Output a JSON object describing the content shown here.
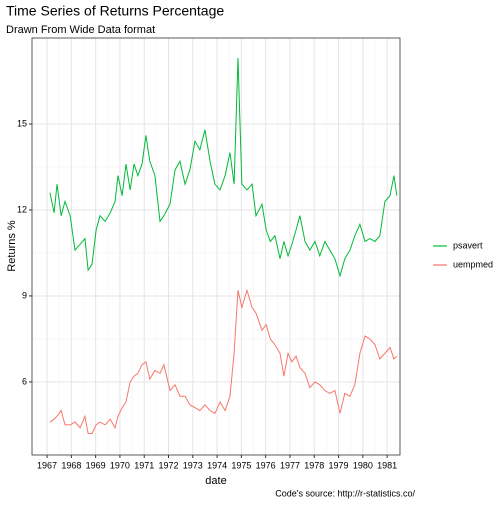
{
  "chart_data": {
    "type": "line",
    "title": "Time Series of Returns Percentage",
    "subtitle": "Drawn From Wide Data format",
    "caption": "Code's source: http://r-statistics.co/",
    "x_label": "date",
    "y_label": "Returns %",
    "x": [
      1967.12,
      1967.29,
      1967.41,
      1967.58,
      1967.74,
      1967.95,
      1968.15,
      1968.36,
      1968.56,
      1968.69,
      1968.85,
      1969.02,
      1969.18,
      1969.39,
      1969.6,
      1969.8,
      1969.92,
      1970.09,
      1970.25,
      1970.42,
      1970.58,
      1970.74,
      1970.91,
      1971.07,
      1971.23,
      1971.44,
      1971.65,
      1971.81,
      1972.06,
      1972.27,
      1972.47,
      1972.68,
      1972.88,
      1973.09,
      1973.29,
      1973.5,
      1973.71,
      1973.91,
      1974.12,
      1974.33,
      1974.53,
      1974.7,
      1974.86,
      1975.02,
      1975.23,
      1975.44,
      1975.6,
      1975.85,
      1976.02,
      1976.19,
      1976.38,
      1976.59,
      1976.75,
      1976.92,
      1977.08,
      1977.25,
      1977.41,
      1977.62,
      1977.82,
      1978.03,
      1978.23,
      1978.44,
      1978.64,
      1978.85,
      1979.06,
      1979.26,
      1979.47,
      1979.67,
      1979.88,
      1980.09,
      1980.29,
      1980.5,
      1980.7,
      1980.91,
      1981.12,
      1981.28,
      1981.4
    ],
    "series": [
      {
        "name": "psavert",
        "color": "#00BA38",
        "values": [
          12.6,
          11.9,
          12.9,
          11.8,
          12.3,
          11.8,
          10.6,
          10.8,
          11.0,
          9.9,
          10.1,
          11.3,
          11.8,
          11.6,
          11.9,
          12.3,
          13.2,
          12.5,
          13.6,
          12.7,
          13.6,
          13.2,
          13.6,
          14.6,
          13.7,
          13.2,
          11.6,
          11.8,
          12.2,
          13.4,
          13.7,
          12.9,
          13.4,
          14.4,
          14.1,
          14.8,
          13.7,
          12.9,
          12.7,
          13.2,
          14.0,
          12.9,
          17.3,
          12.9,
          12.7,
          12.9,
          11.8,
          12.2,
          11.3,
          10.9,
          11.1,
          10.3,
          10.9,
          10.4,
          10.8,
          11.3,
          11.8,
          10.9,
          10.6,
          10.9,
          10.4,
          10.9,
          10.6,
          10.3,
          9.7,
          10.3,
          10.6,
          11.1,
          11.5,
          10.9,
          11.0,
          10.9,
          11.1,
          12.3,
          12.5,
          13.2,
          12.5
        ]
      },
      {
        "name": "uempmed",
        "color": "#F8766D",
        "values": [
          4.6,
          4.7,
          4.8,
          5.0,
          4.5,
          4.5,
          4.6,
          4.4,
          4.8,
          4.2,
          4.2,
          4.5,
          4.6,
          4.5,
          4.7,
          4.4,
          4.8,
          5.1,
          5.3,
          6.0,
          6.2,
          6.3,
          6.6,
          6.7,
          6.1,
          6.4,
          6.3,
          6.6,
          5.7,
          5.9,
          5.5,
          5.5,
          5.2,
          5.1,
          5.0,
          5.2,
          5.0,
          4.9,
          5.3,
          5.0,
          5.5,
          7.0,
          9.2,
          8.6,
          9.2,
          8.6,
          8.4,
          7.8,
          8.0,
          7.5,
          7.3,
          7.0,
          6.2,
          7.0,
          6.7,
          6.9,
          6.5,
          6.3,
          5.8,
          6.0,
          5.9,
          5.7,
          5.6,
          5.7,
          4.9,
          5.6,
          5.5,
          5.9,
          7.0,
          7.6,
          7.5,
          7.3,
          6.8,
          7.0,
          7.2,
          6.8,
          6.9
        ]
      }
    ],
    "xlim": [
      1966.38,
      1981.53
    ],
    "xticks": [
      1967,
      1968,
      1969,
      1970,
      1971,
      1972,
      1973,
      1974,
      1975,
      1976,
      1977,
      1978,
      1979,
      1980,
      1981
    ],
    "ylim": [
      3.45,
      18.0
    ],
    "yticks": [
      6,
      9,
      12,
      15
    ],
    "grid": true,
    "legend": "right"
  }
}
